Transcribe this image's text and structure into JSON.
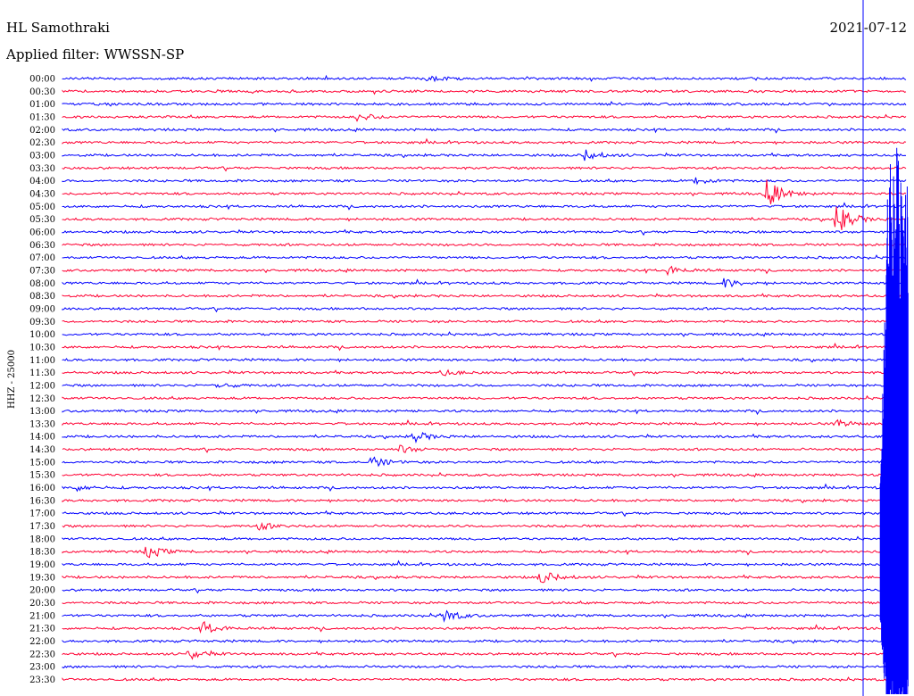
{
  "header": {
    "station": "HL Samothraki",
    "date": "2021-07-12",
    "filter": "Applied filter: WWSSN-SP"
  },
  "chart_data": {
    "type": "line",
    "ylabel": "HHZ - 25000",
    "row_labels": [
      "00:00",
      "00:30",
      "01:00",
      "01:30",
      "02:00",
      "02:30",
      "03:00",
      "03:30",
      "04:00",
      "04:30",
      "05:00",
      "05:30",
      "06:00",
      "06:30",
      "07:00",
      "07:30",
      "08:00",
      "08:30",
      "09:00",
      "09:30",
      "10:00",
      "10:30",
      "11:00",
      "11:30",
      "12:00",
      "12:30",
      "13:00",
      "13:30",
      "14:00",
      "14:30",
      "15:00",
      "15:30",
      "16:00",
      "16:30",
      "17:00",
      "17:30",
      "18:00",
      "18:30",
      "19:00",
      "19:30",
      "20:00",
      "20:30",
      "21:00",
      "21:30",
      "22:00",
      "22:30",
      "23:00",
      "23:30"
    ],
    "colors": [
      "#0000ff",
      "#ff0033"
    ],
    "grid": false,
    "events": [
      {
        "row": "00:00",
        "minute": 13.0,
        "amplitude": 3
      },
      {
        "row": "01:30",
        "minute": 10.5,
        "amplitude": 5
      },
      {
        "row": "03:00",
        "minute": 18.5,
        "amplitude": 7
      },
      {
        "row": "04:00",
        "minute": 22.5,
        "amplitude": 4
      },
      {
        "row": "04:30",
        "minute": 25.0,
        "amplitude": 16
      },
      {
        "row": "05:30",
        "minute": 27.5,
        "amplitude": 18
      },
      {
        "row": "07:30",
        "minute": 21.5,
        "amplitude": 5
      },
      {
        "row": "08:00",
        "minute": 23.5,
        "amplitude": 5
      },
      {
        "row": "11:30",
        "minute": 13.5,
        "amplitude": 3
      },
      {
        "row": "12:00",
        "minute": 5.5,
        "amplitude": 3
      },
      {
        "row": "13:30",
        "minute": 27.5,
        "amplitude": 4
      },
      {
        "row": "14:00",
        "minute": 12.5,
        "amplitude": 6
      },
      {
        "row": "14:30",
        "minute": 12.0,
        "amplitude": 4
      },
      {
        "row": "15:00",
        "minute": 11.0,
        "amplitude": 6
      },
      {
        "row": "16:00",
        "minute": 0.5,
        "amplitude": 3
      },
      {
        "row": "17:30",
        "minute": 7.0,
        "amplitude": 4
      },
      {
        "row": "18:30",
        "minute": 3.0,
        "amplitude": 8
      },
      {
        "row": "19:30",
        "minute": 17.0,
        "amplitude": 8
      },
      {
        "row": "21:00",
        "minute": 13.5,
        "amplitude": 8
      },
      {
        "row": "21:30",
        "minute": 5.0,
        "amplitude": 7
      },
      {
        "row": "22:30",
        "minute": 4.5,
        "amplitude": 6
      }
    ],
    "mainshock": {
      "row": "20:00",
      "minute": 29.5
    }
  }
}
